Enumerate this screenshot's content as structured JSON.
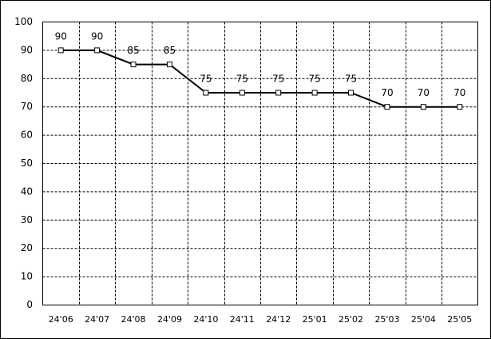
{
  "chart_data": {
    "type": "line",
    "categories": [
      "24'06",
      "24'07",
      "24'08",
      "24'09",
      "24'10",
      "24'11",
      "24'12",
      "25'01",
      "25'02",
      "25'03",
      "25'04",
      "25'05"
    ],
    "values": [
      90,
      90,
      85,
      85,
      75,
      75,
      75,
      75,
      75,
      70,
      70,
      70
    ],
    "color": "#000000",
    "ylim": [
      0,
      100
    ],
    "yticks": [
      0,
      10,
      20,
      30,
      40,
      50,
      60,
      70,
      80,
      90,
      100
    ],
    "grid": true,
    "data_labels": true
  }
}
